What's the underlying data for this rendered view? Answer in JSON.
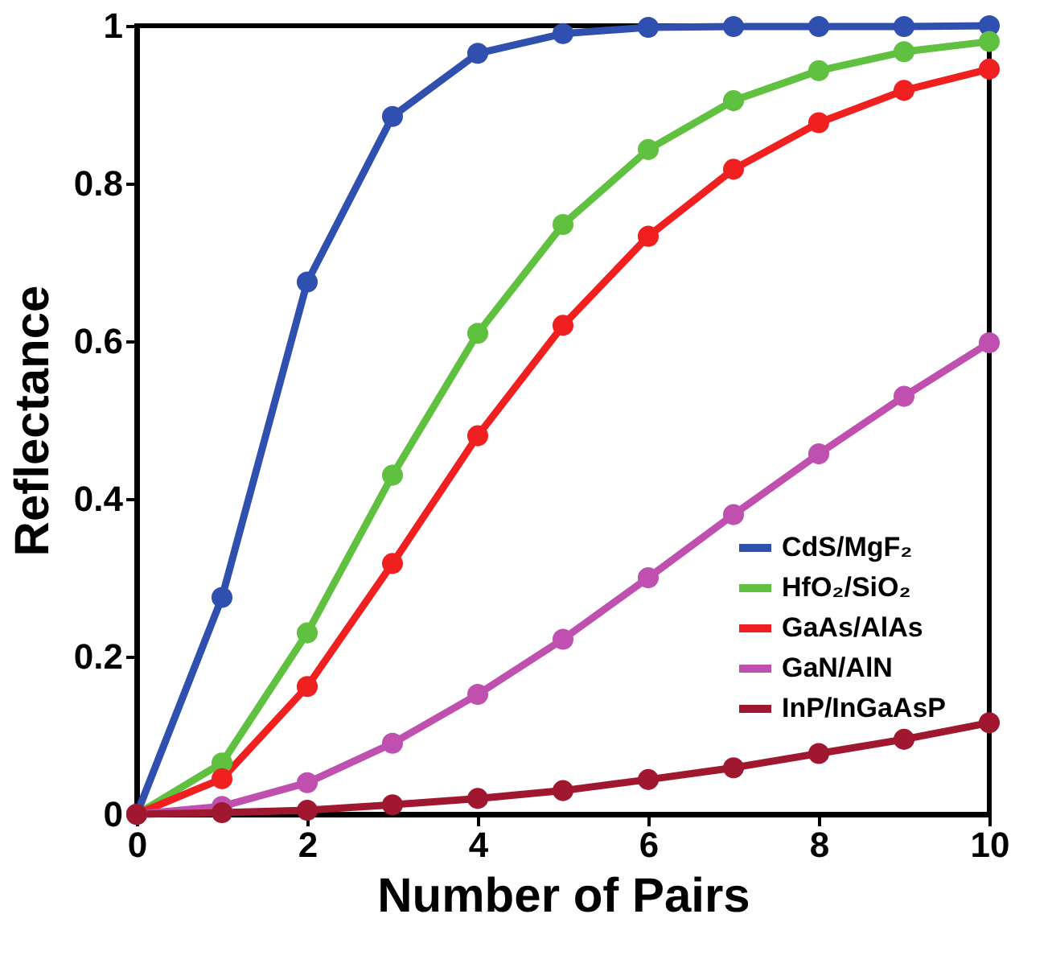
{
  "chart_data": {
    "type": "line",
    "xlabel": "Number of Pairs",
    "ylabel": "Reflectance",
    "x": [
      0,
      1,
      2,
      3,
      4,
      5,
      6,
      7,
      8,
      9,
      10
    ],
    "series": [
      {
        "name": "CdS/MgF₂",
        "color": "#3050b0",
        "values": [
          0,
          0.275,
          0.675,
          0.885,
          0.965,
          0.99,
          0.998,
          0.999,
          0.999,
          0.999,
          1.0
        ]
      },
      {
        "name": "HfO₂/SiO₂",
        "color": "#60c040",
        "values": [
          0,
          0.065,
          0.23,
          0.43,
          0.61,
          0.748,
          0.843,
          0.905,
          0.943,
          0.967,
          0.98
        ]
      },
      {
        "name": "GaAs/AlAs",
        "color": "#f02020",
        "values": [
          0,
          0.045,
          0.162,
          0.318,
          0.48,
          0.62,
          0.733,
          0.818,
          0.877,
          0.918,
          0.945
        ]
      },
      {
        "name": "GaN/AlN",
        "color": "#c050b0",
        "values": [
          0,
          0.01,
          0.04,
          0.09,
          0.152,
          0.222,
          0.3,
          0.38,
          0.457,
          0.53,
          0.598
        ]
      },
      {
        "name": "InP/InGaAsP",
        "color": "#a01830",
        "values": [
          0,
          0.002,
          0.005,
          0.012,
          0.02,
          0.03,
          0.044,
          0.059,
          0.077,
          0.095,
          0.116
        ]
      }
    ],
    "xlim": [
      0,
      10
    ],
    "xticks": [
      0,
      2,
      4,
      6,
      8,
      10
    ],
    "ylim": [
      0,
      1
    ],
    "yticks": [
      0,
      0.2,
      0.4,
      0.6,
      0.8,
      1
    ],
    "grid": false,
    "legend": "bottom right",
    "marker": "circle",
    "line_style": "solid"
  }
}
